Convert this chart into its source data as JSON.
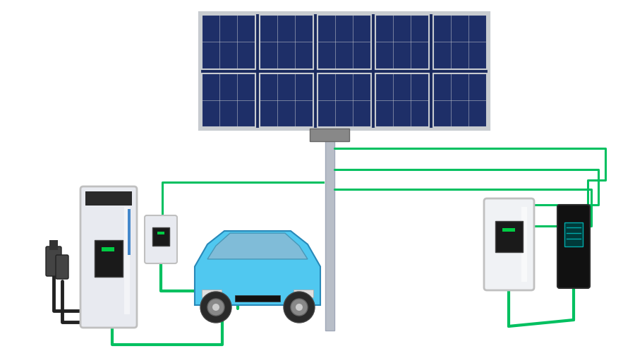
{
  "background_color": "#ffffff",
  "wire_color_green": "#00C060",
  "wire_color_black": "#222222",
  "solar_panel_color": "#1a2a5e",
  "solar_frame_color": "#c8ccd0",
  "pole_color": "#b8bec8",
  "charger_body_color": "#e8eaf0",
  "charger_green_dot": "#00cc44",
  "car_body_color": "#50c8f0",
  "fig_width": 9.0,
  "fig_height": 5.14
}
